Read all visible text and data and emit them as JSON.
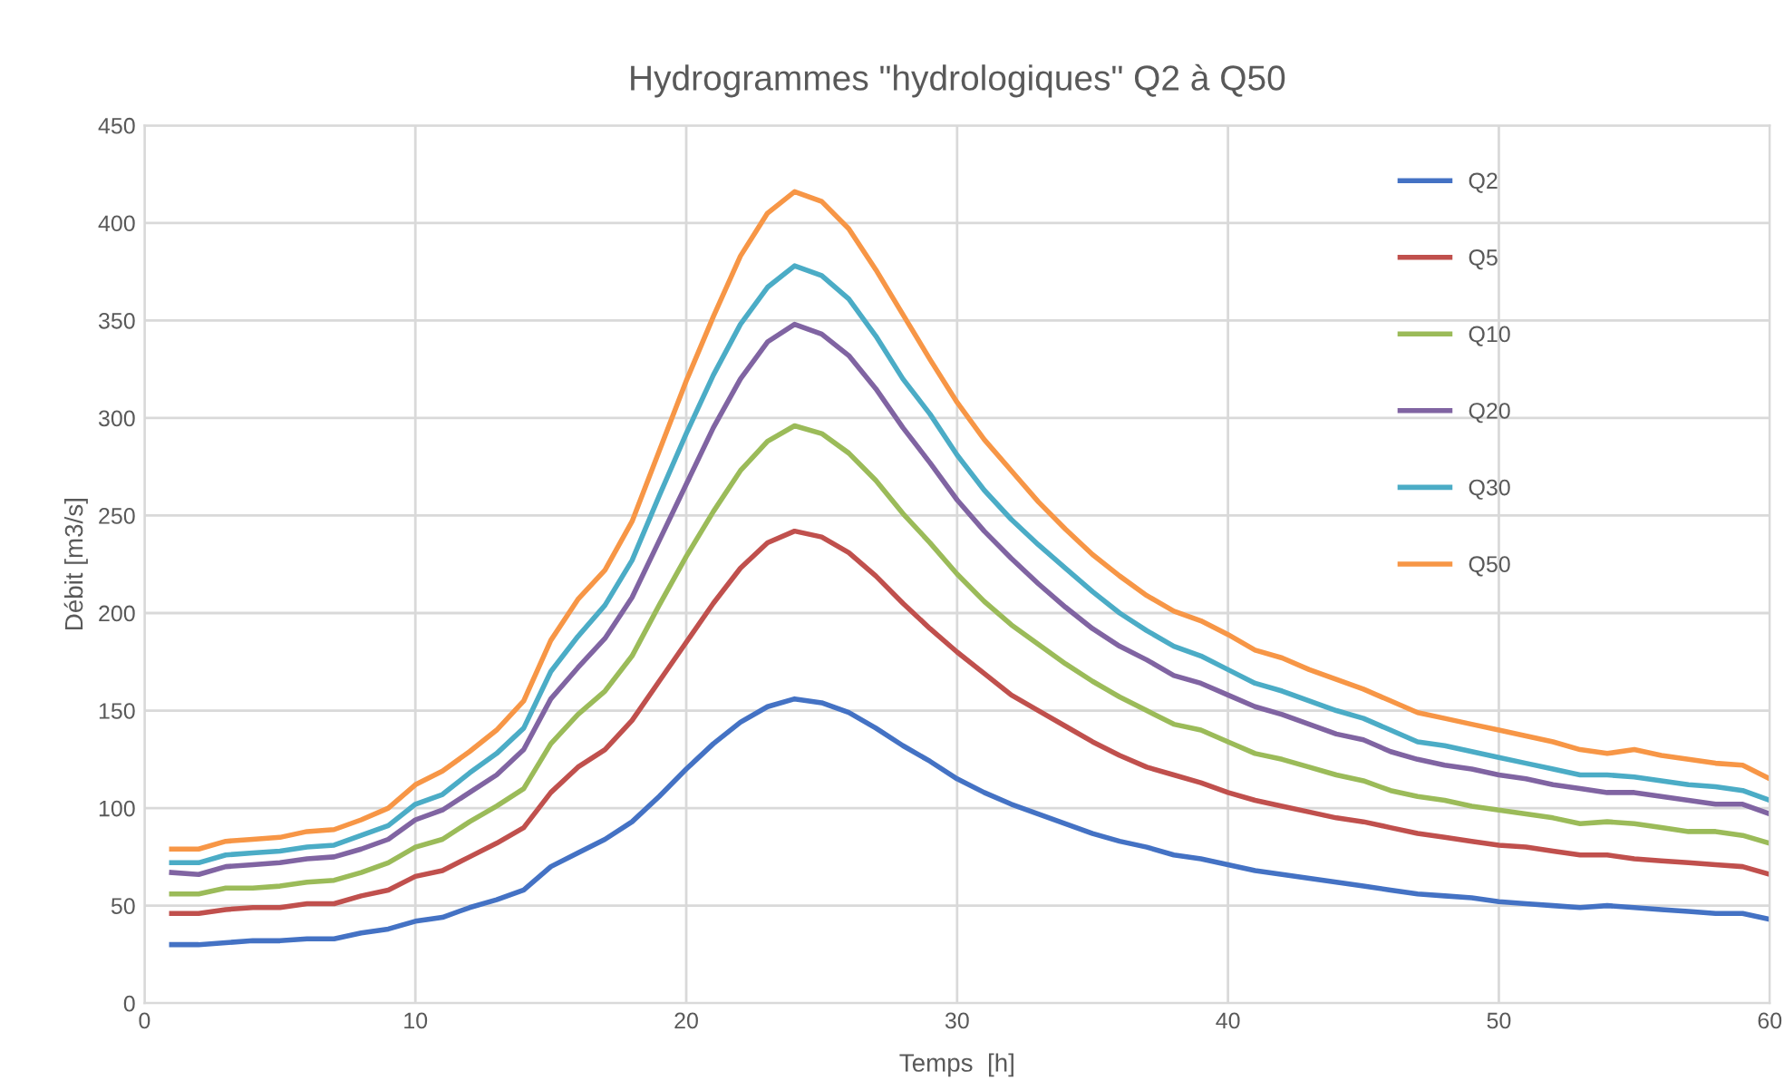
{
  "chart_data": {
    "type": "line",
    "title": "Hydrogrammes \"hydrologiques\" Q2 à Q50",
    "xlabel": "Temps  [h]",
    "ylabel": "Débit [m3/s]",
    "x": [
      1,
      2,
      3,
      4,
      5,
      6,
      7,
      8,
      9,
      10,
      11,
      12,
      13,
      14,
      15,
      16,
      17,
      18,
      19,
      20,
      21,
      22,
      23,
      24,
      25,
      26,
      27,
      28,
      29,
      30,
      31,
      32,
      33,
      34,
      35,
      36,
      37,
      38,
      39,
      40,
      41,
      42,
      43,
      44,
      45,
      46,
      47,
      48,
      49,
      50,
      51,
      52,
      53,
      54,
      55,
      56,
      57,
      58,
      59,
      60
    ],
    "xlim": [
      0,
      60
    ],
    "xticks": [
      0,
      10,
      20,
      30,
      40,
      50,
      60
    ],
    "ylim": [
      0,
      450
    ],
    "yticks": [
      0,
      50,
      100,
      150,
      200,
      250,
      300,
      350,
      400,
      450
    ],
    "grid": true,
    "legend": "top right",
    "marker": "none",
    "line_style": "solid",
    "series": [
      {
        "name": "Q2",
        "color": "#4472c4",
        "values": [
          30,
          30,
          31,
          32,
          32,
          33,
          33,
          36,
          38,
          42,
          44,
          49,
          53,
          58,
          70,
          77,
          84,
          93,
          106,
          120,
          133,
          144,
          152,
          156,
          154,
          149,
          141,
          132,
          124,
          115,
          108,
          102,
          97,
          92,
          87,
          83,
          80,
          76,
          74,
          71,
          68,
          66,
          64,
          62,
          60,
          58,
          56,
          55,
          54,
          52,
          51,
          50,
          49,
          50,
          49,
          48,
          47,
          46,
          46,
          43
        ]
      },
      {
        "name": "Q5",
        "color": "#c0504d",
        "values": [
          46,
          46,
          48,
          49,
          49,
          51,
          51,
          55,
          58,
          65,
          68,
          75,
          82,
          90,
          108,
          121,
          130,
          145,
          165,
          185,
          205,
          223,
          236,
          242,
          239,
          231,
          219,
          205,
          192,
          180,
          169,
          158,
          150,
          142,
          134,
          127,
          121,
          117,
          113,
          108,
          104,
          101,
          98,
          95,
          93,
          90,
          87,
          85,
          83,
          81,
          80,
          78,
          76,
          76,
          74,
          73,
          72,
          71,
          70,
          66
        ]
      },
      {
        "name": "Q10",
        "color": "#9bbb59",
        "values": [
          56,
          56,
          59,
          59,
          60,
          62,
          63,
          67,
          72,
          80,
          84,
          93,
          101,
          110,
          133,
          148,
          160,
          178,
          204,
          229,
          252,
          273,
          288,
          296,
          292,
          282,
          268,
          251,
          236,
          220,
          206,
          194,
          184,
          174,
          165,
          157,
          150,
          143,
          140,
          134,
          128,
          125,
          121,
          117,
          114,
          109,
          106,
          104,
          101,
          99,
          97,
          95,
          92,
          93,
          92,
          90,
          88,
          88,
          86,
          82
        ]
      },
      {
        "name": "Q20",
        "color": "#8064a2",
        "values": [
          67,
          66,
          70,
          71,
          72,
          74,
          75,
          79,
          84,
          94,
          99,
          108,
          117,
          130,
          156,
          172,
          187,
          208,
          237,
          266,
          295,
          320,
          339,
          348,
          343,
          332,
          315,
          295,
          277,
          258,
          242,
          228,
          215,
          203,
          192,
          183,
          176,
          168,
          164,
          158,
          152,
          148,
          143,
          138,
          135,
          129,
          125,
          122,
          120,
          117,
          115,
          112,
          110,
          108,
          108,
          106,
          104,
          102,
          102,
          97
        ]
      },
      {
        "name": "Q30",
        "color": "#4bacc6",
        "values": [
          72,
          72,
          76,
          77,
          78,
          80,
          81,
          86,
          91,
          102,
          107,
          118,
          128,
          141,
          170,
          188,
          204,
          227,
          260,
          292,
          322,
          348,
          367,
          378,
          373,
          361,
          342,
          320,
          302,
          281,
          263,
          248,
          235,
          223,
          211,
          200,
          191,
          183,
          178,
          171,
          164,
          160,
          155,
          150,
          146,
          140,
          134,
          132,
          129,
          126,
          123,
          120,
          117,
          117,
          116,
          114,
          112,
          111,
          109,
          104
        ]
      },
      {
        "name": "Q50",
        "color": "#f79646",
        "values": [
          79,
          79,
          83,
          84,
          85,
          88,
          89,
          94,
          100,
          112,
          119,
          129,
          140,
          155,
          186,
          207,
          222,
          247,
          283,
          319,
          352,
          383,
          405,
          416,
          411,
          397,
          376,
          353,
          330,
          308,
          289,
          273,
          257,
          243,
          230,
          219,
          209,
          201,
          196,
          189,
          181,
          177,
          171,
          166,
          161,
          155,
          149,
          146,
          143,
          140,
          137,
          134,
          130,
          128,
          130,
          127,
          125,
          123,
          122,
          115
        ]
      }
    ]
  }
}
